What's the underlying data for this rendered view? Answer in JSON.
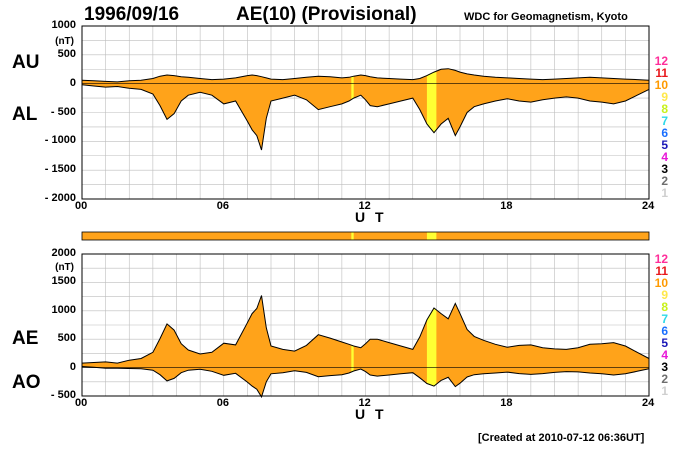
{
  "header": {
    "date": "1996/09/16",
    "title": "AE(10) (Provisional)",
    "source": "WDC for Geomagnetism, Kyoto"
  },
  "footer": {
    "created": "[Created at 2010-07-12 06:36UT]"
  },
  "colors": {
    "fill": "#ffa31a",
    "highlight": "#ffff33",
    "grid": "#bdbdbd",
    "trace": "#000000"
  },
  "station_key": {
    "items": [
      {
        "label": "12",
        "color": "#ff2e9a"
      },
      {
        "label": "11",
        "color": "#e8181c"
      },
      {
        "label": "10",
        "color": "#ff9a00"
      },
      {
        "label": "9",
        "color": "#ffe84a"
      },
      {
        "label": "8",
        "color": "#c8f21a"
      },
      {
        "label": "7",
        "color": "#2ed8e8"
      },
      {
        "label": "6",
        "color": "#1a6fff"
      },
      {
        "label": "5",
        "color": "#1a18b8"
      },
      {
        "label": "4",
        "color": "#e818d8"
      },
      {
        "label": "3",
        "color": "#000000"
      },
      {
        "label": "2",
        "color": "#6e6e6e"
      },
      {
        "label": "1",
        "color": "#cfcfcf"
      }
    ]
  },
  "chart_data": [
    {
      "type": "area",
      "upper_label": "AU",
      "lower_label": "AL",
      "unit": "(nT)",
      "xlabel": "U T",
      "xlim": [
        0,
        24
      ],
      "xticks": [
        0,
        6,
        12,
        18,
        24
      ],
      "xtick_labels": [
        "00",
        "06",
        "12",
        "18",
        "24"
      ],
      "ylim": [
        -2000,
        1000
      ],
      "yticks": [
        1000,
        500,
        0,
        -500,
        -1000,
        -1500,
        -2000
      ],
      "ytick_labels": [
        "1000",
        "500",
        "0",
        "- 500",
        "- 1000",
        "- 1500",
        "- 2000"
      ],
      "grid": true,
      "x": [
        0,
        0.5,
        1,
        1.5,
        2,
        2.5,
        3,
        3.3,
        3.6,
        3.9,
        4.2,
        4.5,
        5,
        5.5,
        6,
        6.5,
        7,
        7.2,
        7.4,
        7.6,
        7.8,
        8,
        8.5,
        9,
        9.5,
        10,
        10.5,
        11,
        11.3,
        11.5,
        11.8,
        12,
        12.2,
        12.5,
        13,
        13.5,
        14,
        14.3,
        14.6,
        14.9,
        15.2,
        15.5,
        15.8,
        16,
        16.3,
        16.6,
        17,
        17.5,
        18,
        18.5,
        19,
        19.5,
        20,
        20.5,
        21,
        21.5,
        22,
        22.5,
        23,
        23.5,
        24
      ],
      "series": [
        {
          "name": "AU",
          "values": [
            60,
            50,
            40,
            30,
            50,
            60,
            90,
            130,
            150,
            140,
            120,
            110,
            90,
            70,
            80,
            100,
            140,
            150,
            140,
            120,
            100,
            80,
            70,
            90,
            110,
            130,
            120,
            100,
            110,
            130,
            150,
            140,
            120,
            100,
            90,
            80,
            70,
            90,
            140,
            200,
            250,
            260,
            230,
            200,
            170,
            150,
            130,
            110,
            100,
            90,
            80,
            70,
            80,
            90,
            100,
            110,
            100,
            90,
            80,
            70,
            60
          ]
        },
        {
          "name": "AL",
          "values": [
            -20,
            -40,
            -60,
            -50,
            -80,
            -100,
            -180,
            -380,
            -620,
            -520,
            -300,
            -200,
            -150,
            -200,
            -350,
            -300,
            -650,
            -800,
            -900,
            -1150,
            -600,
            -300,
            -250,
            -200,
            -280,
            -450,
            -400,
            -350,
            -300,
            -250,
            -200,
            -280,
            -380,
            -400,
            -350,
            -300,
            -250,
            -450,
            -700,
            -850,
            -700,
            -600,
            -900,
            -750,
            -500,
            -400,
            -350,
            -300,
            -260,
            -300,
            -320,
            -280,
            -250,
            -230,
            -250,
            -300,
            -320,
            -350,
            -300,
            -200,
            -100
          ]
        }
      ],
      "highlight_ranges": [
        [
          11.4,
          11.5
        ],
        [
          14.6,
          15.0
        ]
      ]
    },
    {
      "type": "area",
      "upper_label": "AE",
      "lower_label": "AO",
      "unit": "(nT)",
      "xlabel": "U T",
      "xlim": [
        0,
        24
      ],
      "xticks": [
        0,
        6,
        12,
        18,
        24
      ],
      "xtick_labels": [
        "00",
        "06",
        "12",
        "18",
        "24"
      ],
      "ylim": [
        -500,
        2000
      ],
      "yticks": [
        2000,
        1500,
        1000,
        500,
        0,
        -500
      ],
      "ytick_labels": [
        "2000",
        "1500",
        "1000",
        "500",
        "0",
        "- 500"
      ],
      "grid": true,
      "x": [
        0,
        0.5,
        1,
        1.5,
        2,
        2.5,
        3,
        3.3,
        3.6,
        3.9,
        4.2,
        4.5,
        5,
        5.5,
        6,
        6.5,
        7,
        7.2,
        7.4,
        7.6,
        7.8,
        8,
        8.5,
        9,
        9.5,
        10,
        10.5,
        11,
        11.3,
        11.5,
        11.8,
        12,
        12.2,
        12.5,
        13,
        13.5,
        14,
        14.3,
        14.6,
        14.9,
        15.2,
        15.5,
        15.8,
        16,
        16.3,
        16.6,
        17,
        17.5,
        18,
        18.5,
        19,
        19.5,
        20,
        20.5,
        21,
        21.5,
        22,
        22.5,
        23,
        23.5,
        24
      ],
      "series": [
        {
          "name": "AE",
          "values": [
            80,
            90,
            100,
            80,
            130,
            160,
            270,
            510,
            770,
            660,
            420,
            310,
            240,
            270,
            430,
            400,
            790,
            950,
            1040,
            1270,
            700,
            380,
            320,
            290,
            390,
            580,
            520,
            450,
            410,
            380,
            350,
            420,
            500,
            500,
            440,
            380,
            320,
            540,
            840,
            1050,
            950,
            860,
            1130,
            950,
            670,
            550,
            480,
            410,
            360,
            390,
            400,
            350,
            330,
            320,
            350,
            410,
            420,
            440,
            380,
            270,
            160
          ]
        },
        {
          "name": "AO",
          "values": [
            20,
            5,
            -10,
            -10,
            -15,
            -20,
            -45,
            -125,
            -235,
            -190,
            -90,
            -45,
            -30,
            -65,
            -135,
            -100,
            -255,
            -325,
            -380,
            -515,
            -250,
            -110,
            -90,
            -55,
            -85,
            -160,
            -140,
            -125,
            -95,
            -60,
            -25,
            -70,
            -130,
            -150,
            -130,
            -110,
            -90,
            -180,
            -280,
            -325,
            -225,
            -170,
            -335,
            -275,
            -165,
            -125,
            -110,
            -95,
            -80,
            -105,
            -120,
            -105,
            -85,
            -70,
            -75,
            -95,
            -110,
            -130,
            -110,
            -65,
            -20
          ]
        }
      ],
      "highlight_ranges": [
        [
          11.4,
          11.5
        ],
        [
          14.6,
          15.0
        ]
      ]
    }
  ]
}
